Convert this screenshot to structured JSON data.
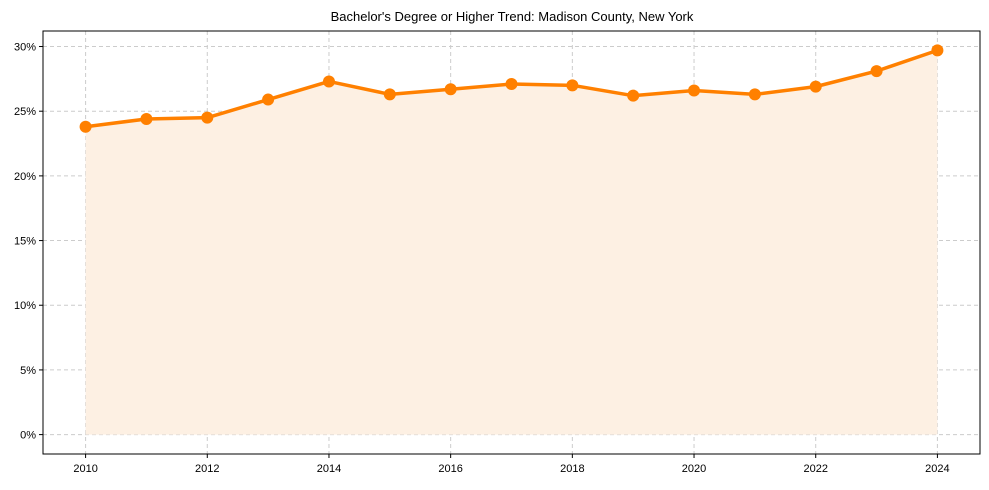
{
  "chart_data": {
    "type": "line",
    "title": "Bachelor's Degree or Higher Trend: Madison County, New York",
    "xlabel": "",
    "ylabel": "",
    "x": [
      2010,
      2011,
      2012,
      2013,
      2014,
      2015,
      2016,
      2017,
      2018,
      2019,
      2020,
      2021,
      2022,
      2023,
      2024
    ],
    "series": [
      {
        "name": "Bachelor's Degree or Higher",
        "values": [
          23.8,
          24.4,
          24.5,
          25.9,
          27.3,
          26.3,
          26.7,
          27.1,
          27.0,
          26.2,
          26.6,
          26.3,
          26.9,
          28.1,
          29.7
        ],
        "color": "#ff8000",
        "fill": "#fdf0e3",
        "marker": "circle"
      }
    ],
    "x_ticks": [
      2010,
      2012,
      2014,
      2016,
      2018,
      2020,
      2022,
      2024
    ],
    "y_ticks": [
      0,
      5,
      10,
      15,
      20,
      25,
      30
    ],
    "y_tick_labels": [
      "0%",
      "5%",
      "10%",
      "15%",
      "20%",
      "25%",
      "30%"
    ],
    "xlim": [
      2009.3,
      2024.7
    ],
    "ylim": [
      -1.5,
      31.2
    ],
    "grid": true,
    "legend": null
  }
}
